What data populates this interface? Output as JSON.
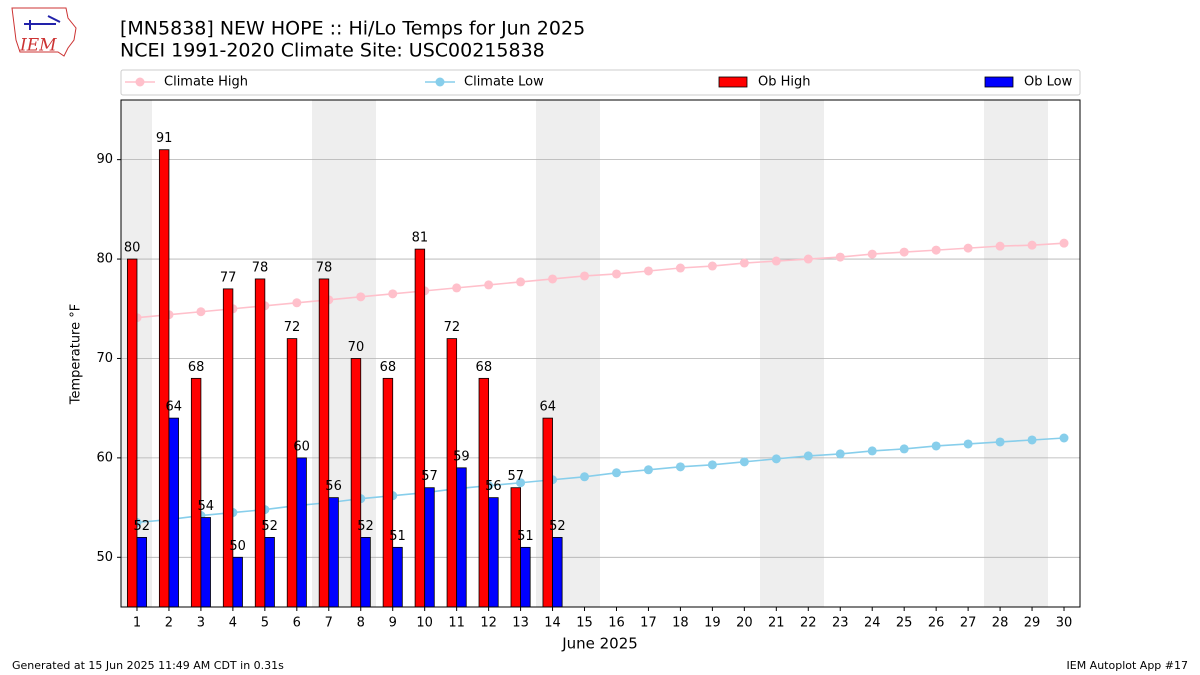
{
  "chart_data": {
    "type": "bar",
    "title": "[MN5838] NEW HOPE :: Hi/Lo Temps for Jun 2025",
    "subtitle": "NCEI 1991-2020 Climate Site: USC00215838",
    "xlabel": "June 2025",
    "ylabel": "Temperature °F",
    "x": [
      1,
      2,
      3,
      4,
      5,
      6,
      7,
      8,
      9,
      10,
      11,
      12,
      13,
      14,
      15,
      16,
      17,
      18,
      19,
      20,
      21,
      22,
      23,
      24,
      25,
      26,
      27,
      28,
      29,
      30
    ],
    "xlim": [
      0.5,
      30.5
    ],
    "xticks": [
      1,
      2,
      3,
      4,
      5,
      6,
      7,
      8,
      9,
      10,
      11,
      12,
      13,
      14,
      15,
      16,
      17,
      18,
      19,
      20,
      21,
      22,
      23,
      24,
      25,
      26,
      27,
      28,
      29,
      30
    ],
    "ylim": [
      45,
      96
    ],
    "yticks": [
      50,
      60,
      70,
      80,
      90
    ],
    "grid": true,
    "legend": "top",
    "series": [
      {
        "name": "Climate High",
        "type": "line",
        "color": "#ffc0cb",
        "values": [
          74.1,
          74.4,
          74.7,
          75.0,
          75.3,
          75.6,
          75.9,
          76.2,
          76.5,
          76.8,
          77.1,
          77.4,
          77.7,
          78.0,
          78.3,
          78.5,
          78.8,
          79.1,
          79.3,
          79.6,
          79.8,
          80.0,
          80.2,
          80.5,
          80.7,
          80.9,
          81.1,
          81.3,
          81.4,
          81.6
        ]
      },
      {
        "name": "Climate Low",
        "type": "line",
        "color": "#87ceeb",
        "values": [
          53.5,
          53.8,
          54.2,
          54.5,
          54.8,
          55.2,
          55.5,
          55.9,
          56.2,
          56.5,
          56.9,
          57.2,
          57.5,
          57.8,
          58.1,
          58.5,
          58.8,
          59.1,
          59.3,
          59.6,
          59.9,
          60.2,
          60.4,
          60.7,
          60.9,
          61.2,
          61.4,
          61.6,
          61.8,
          62.0
        ]
      },
      {
        "name": "Ob High",
        "type": "bar",
        "color": "#ff0000",
        "values": [
          80,
          91,
          68,
          77,
          78,
          72,
          78,
          70,
          68,
          81,
          72,
          68,
          57,
          64,
          null,
          null,
          null,
          null,
          null,
          null,
          null,
          null,
          null,
          null,
          null,
          null,
          null,
          null,
          null,
          null
        ]
      },
      {
        "name": "Ob Low",
        "type": "bar",
        "color": "#0000ff",
        "values": [
          52,
          64,
          54,
          50,
          52,
          60,
          56,
          52,
          51,
          57,
          59,
          56,
          51,
          52,
          null,
          null,
          null,
          null,
          null,
          null,
          null,
          null,
          null,
          null,
          null,
          null,
          null,
          null,
          null,
          null
        ]
      }
    ],
    "footer_left": "Generated at 15 Jun 2025 11:49 AM CDT in 0.31s",
    "footer_right": "IEM Autoplot App #17",
    "logo_text": "IEM"
  }
}
